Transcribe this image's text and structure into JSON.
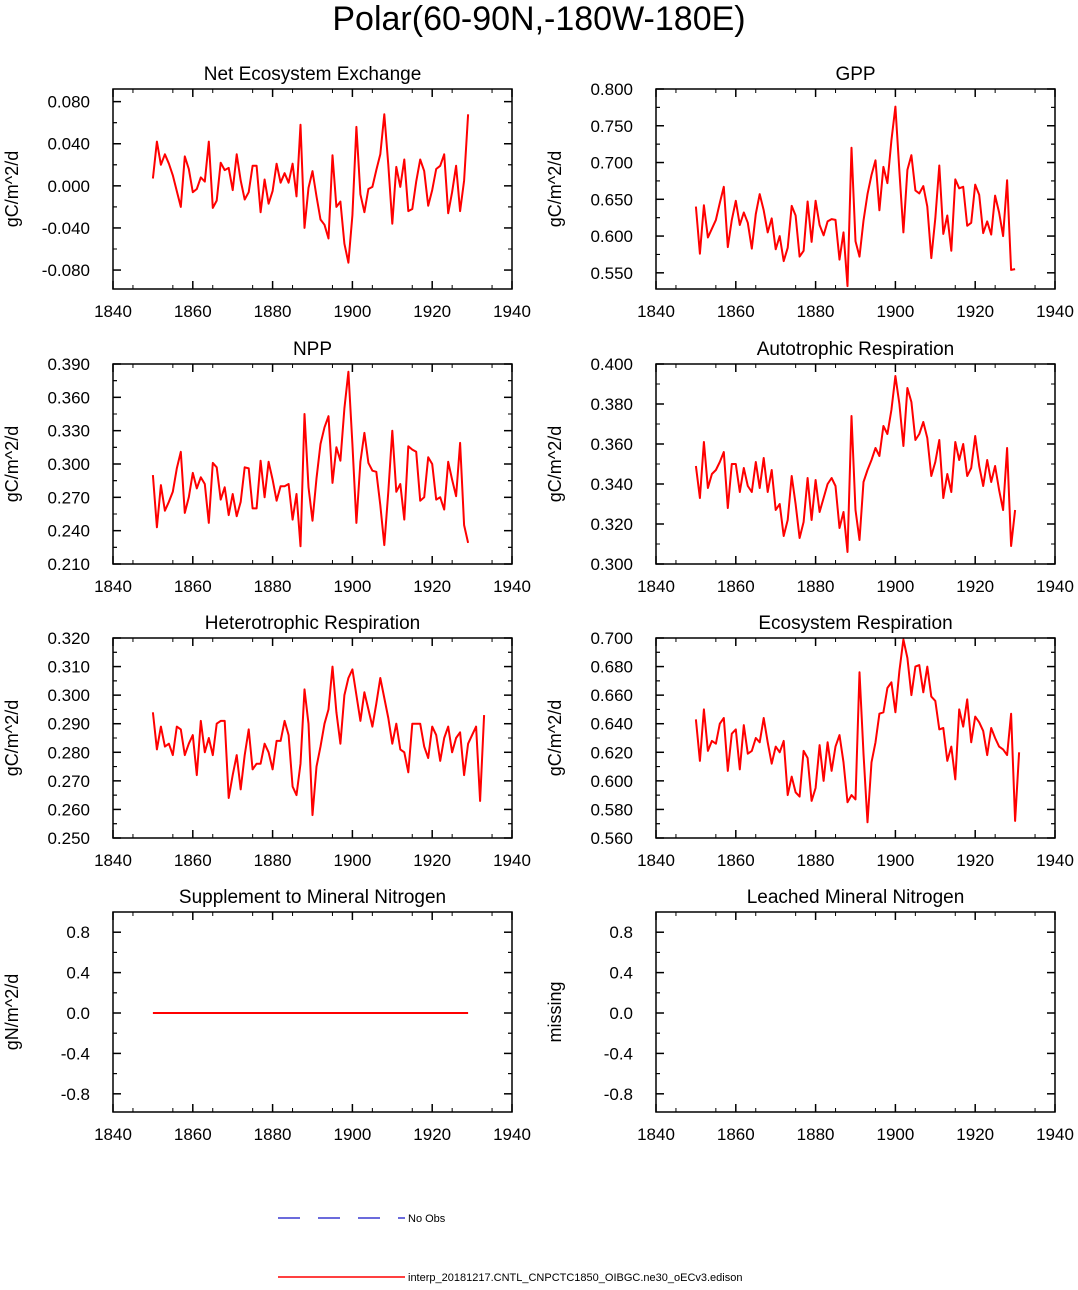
{
  "figure_title": "Polar(60-90N,-180W-180E)",
  "legend": [
    {
      "label": "No Obs",
      "color": "#3a3ad0",
      "dash": "dashed"
    },
    {
      "label": "interp_20181217.CNTL_CNPCTC1850_OIBGC.ne30_oECv3.edison",
      "color": "#ff0000",
      "dash": "solid"
    }
  ],
  "chart_data": [
    {
      "type": "line",
      "title": "Net Ecosystem Exchange",
      "ylabel": "gC/m^2/d",
      "xlabel": "",
      "xlim": [
        1840,
        1940
      ],
      "ylim": [
        -0.098,
        0.092
      ],
      "xticks": [
        1840,
        1860,
        1880,
        1900,
        1920,
        1940
      ],
      "xtick_labels": [
        "1840",
        "1860",
        "1880",
        "1900",
        "1920",
        "1940"
      ],
      "yticks": [
        -0.08,
        -0.04,
        0.0,
        0.04,
        0.08
      ],
      "ytick_labels": [
        "-0.080",
        "-0.040",
        "0.000",
        "0.040",
        "0.080"
      ],
      "x_start": 1850,
      "series": [
        {
          "name": "interp_20181217.CNTL_CNPCTC1850_OIBGC.ne30_oECv3.edison",
          "color": "#ff0000",
          "values": [
            0.007,
            0.042,
            0.02,
            0.03,
            0.021,
            0.01,
            -0.005,
            -0.02,
            0.028,
            0.016,
            -0.006,
            -0.003,
            0.008,
            0.004,
            0.042,
            -0.021,
            -0.014,
            0.022,
            0.015,
            0.017,
            -0.004,
            0.03,
            0.005,
            -0.013,
            -0.006,
            0.019,
            0.019,
            -0.025,
            0.006,
            -0.017,
            -0.005,
            0.021,
            0.003,
            0.012,
            0.003,
            0.021,
            -0.01,
            0.058,
            -0.04,
            -0.002,
            0.014,
            -0.01,
            -0.032,
            -0.037,
            -0.05,
            0.029,
            -0.02,
            -0.015,
            -0.055,
            -0.073,
            -0.028,
            0.056,
            -0.008,
            -0.025,
            -0.003,
            -0.001,
            0.015,
            0.03,
            0.068,
            0.02,
            -0.036,
            0.018,
            -0.001,
            0.025,
            -0.024,
            -0.022,
            0.004,
            0.025,
            0.014,
            -0.019,
            -0.004,
            0.016,
            0.019,
            0.03,
            -0.026,
            -0.006,
            0.019,
            -0.024,
            0.005,
            0.068
          ]
        }
      ]
    },
    {
      "type": "line",
      "title": "GPP",
      "ylabel": "gC/m^2/d",
      "xlabel": "",
      "xlim": [
        1840,
        1940
      ],
      "ylim": [
        0.528,
        0.8
      ],
      "xticks": [
        1840,
        1860,
        1880,
        1900,
        1920,
        1940
      ],
      "xtick_labels": [
        "1840",
        "1860",
        "1880",
        "1900",
        "1920",
        "1940"
      ],
      "yticks": [
        0.55,
        0.6,
        0.65,
        0.7,
        0.75,
        0.8
      ],
      "ytick_labels": [
        "0.550",
        "0.600",
        "0.650",
        "0.700",
        "0.750",
        "0.800"
      ],
      "x_start": 1850,
      "series": [
        {
          "name": "interp_20181217.CNTL_CNPCTC1850_OIBGC.ne30_oECv3.edison",
          "color": "#ff0000",
          "values": [
            0.64,
            0.576,
            0.642,
            0.598,
            0.61,
            0.622,
            0.645,
            0.667,
            0.585,
            0.622,
            0.648,
            0.615,
            0.632,
            0.618,
            0.583,
            0.63,
            0.657,
            0.635,
            0.605,
            0.624,
            0.582,
            0.6,
            0.566,
            0.584,
            0.641,
            0.628,
            0.572,
            0.58,
            0.647,
            0.592,
            0.648,
            0.615,
            0.601,
            0.62,
            0.623,
            0.622,
            0.568,
            0.605,
            0.532,
            0.72,
            0.593,
            0.572,
            0.621,
            0.657,
            0.683,
            0.703,
            0.635,
            0.694,
            0.672,
            0.73,
            0.776,
            0.688,
            0.605,
            0.69,
            0.71,
            0.662,
            0.658,
            0.668,
            0.64,
            0.57,
            0.624,
            0.696,
            0.603,
            0.628,
            0.58,
            0.677,
            0.665,
            0.667,
            0.614,
            0.618,
            0.67,
            0.656,
            0.604,
            0.62,
            0.602,
            0.655,
            0.632,
            0.6,
            0.676,
            0.554,
            0.555
          ]
        }
      ]
    },
    {
      "type": "line",
      "title": "NPP",
      "ylabel": "gC/m^2/d",
      "xlabel": "",
      "xlim": [
        1840,
        1940
      ],
      "ylim": [
        0.21,
        0.39
      ],
      "xticks": [
        1840,
        1860,
        1880,
        1900,
        1920,
        1940
      ],
      "xtick_labels": [
        "1840",
        "1860",
        "1880",
        "1900",
        "1920",
        "1940"
      ],
      "yticks": [
        0.21,
        0.24,
        0.27,
        0.3,
        0.33,
        0.36,
        0.39
      ],
      "ytick_labels": [
        "0.210",
        "0.240",
        "0.270",
        "0.300",
        "0.330",
        "0.360",
        "0.390"
      ],
      "x_start": 1850,
      "series": [
        {
          "name": "interp_20181217.CNTL_CNPCTC1850_OIBGC.ne30_oECv3.edison",
          "color": "#ff0000",
          "values": [
            0.29,
            0.243,
            0.281,
            0.258,
            0.266,
            0.275,
            0.296,
            0.311,
            0.256,
            0.27,
            0.292,
            0.278,
            0.288,
            0.282,
            0.247,
            0.301,
            0.297,
            0.268,
            0.279,
            0.254,
            0.273,
            0.253,
            0.266,
            0.297,
            0.296,
            0.26,
            0.26,
            0.303,
            0.27,
            0.302,
            0.286,
            0.267,
            0.28,
            0.28,
            0.282,
            0.25,
            0.273,
            0.226,
            0.345,
            0.279,
            0.249,
            0.287,
            0.318,
            0.333,
            0.343,
            0.283,
            0.315,
            0.303,
            0.35,
            0.383,
            0.318,
            0.247,
            0.302,
            0.328,
            0.301,
            0.294,
            0.293,
            0.263,
            0.227,
            0.275,
            0.33,
            0.275,
            0.282,
            0.25,
            0.316,
            0.313,
            0.311,
            0.267,
            0.27,
            0.306,
            0.3,
            0.268,
            0.27,
            0.259,
            0.302,
            0.286,
            0.271,
            0.319,
            0.245,
            0.229
          ]
        }
      ]
    },
    {
      "type": "line",
      "title": "Autotrophic Respiration",
      "ylabel": "gC/m^2/d",
      "xlabel": "",
      "xlim": [
        1840,
        1940
      ],
      "ylim": [
        0.3,
        0.4
      ],
      "xticks": [
        1840,
        1860,
        1880,
        1900,
        1920,
        1940
      ],
      "xtick_labels": [
        "1840",
        "1860",
        "1880",
        "1900",
        "1920",
        "1940"
      ],
      "yticks": [
        0.3,
        0.32,
        0.34,
        0.36,
        0.38,
        0.4
      ],
      "ytick_labels": [
        "0.300",
        "0.320",
        "0.340",
        "0.360",
        "0.380",
        "0.400"
      ],
      "x_start": 1850,
      "series": [
        {
          "name": "interp_20181217.CNTL_CNPCTC1850_OIBGC.ne30_oECv3.edison",
          "color": "#ff0000",
          "values": [
            0.349,
            0.333,
            0.361,
            0.338,
            0.345,
            0.347,
            0.351,
            0.356,
            0.328,
            0.35,
            0.35,
            0.336,
            0.348,
            0.339,
            0.336,
            0.351,
            0.338,
            0.353,
            0.336,
            0.347,
            0.327,
            0.33,
            0.314,
            0.322,
            0.344,
            0.33,
            0.313,
            0.321,
            0.343,
            0.322,
            0.342,
            0.326,
            0.333,
            0.34,
            0.343,
            0.339,
            0.318,
            0.326,
            0.306,
            0.374,
            0.327,
            0.312,
            0.341,
            0.347,
            0.352,
            0.358,
            0.354,
            0.369,
            0.365,
            0.377,
            0.394,
            0.38,
            0.359,
            0.388,
            0.381,
            0.362,
            0.365,
            0.371,
            0.363,
            0.344,
            0.351,
            0.362,
            0.333,
            0.345,
            0.336,
            0.361,
            0.352,
            0.36,
            0.344,
            0.348,
            0.364,
            0.349,
            0.339,
            0.352,
            0.341,
            0.349,
            0.337,
            0.327,
            0.358,
            0.309,
            0.327
          ]
        }
      ]
    },
    {
      "type": "line",
      "title": "Heterotrophic Respiration",
      "ylabel": "gC/m^2/d",
      "xlabel": "",
      "xlim": [
        1840,
        1940
      ],
      "ylim": [
        0.25,
        0.32
      ],
      "xticks": [
        1840,
        1860,
        1880,
        1900,
        1920,
        1940
      ],
      "xtick_labels": [
        "1840",
        "1860",
        "1880",
        "1900",
        "1920",
        "1940"
      ],
      "yticks": [
        0.25,
        0.26,
        0.27,
        0.28,
        0.29,
        0.3,
        0.31,
        0.32
      ],
      "ytick_labels": [
        "0.250",
        "0.260",
        "0.270",
        "0.280",
        "0.290",
        "0.300",
        "0.310",
        "0.320"
      ],
      "x_start": 1850,
      "series": [
        {
          "name": "interp_20181217.CNTL_CNPCTC1850_OIBGC.ne30_oECv3.edison",
          "color": "#ff0000",
          "values": [
            0.294,
            0.281,
            0.289,
            0.282,
            0.283,
            0.279,
            0.289,
            0.288,
            0.279,
            0.283,
            0.286,
            0.272,
            0.291,
            0.28,
            0.285,
            0.279,
            0.29,
            0.291,
            0.291,
            0.264,
            0.272,
            0.279,
            0.267,
            0.279,
            0.288,
            0.274,
            0.276,
            0.276,
            0.283,
            0.28,
            0.274,
            0.284,
            0.284,
            0.291,
            0.286,
            0.268,
            0.265,
            0.276,
            0.302,
            0.29,
            0.258,
            0.275,
            0.282,
            0.29,
            0.295,
            0.31,
            0.294,
            0.283,
            0.3,
            0.306,
            0.309,
            0.3,
            0.291,
            0.301,
            0.295,
            0.289,
            0.297,
            0.306,
            0.299,
            0.292,
            0.283,
            0.29,
            0.281,
            0.28,
            0.273,
            0.29,
            0.29,
            0.29,
            0.282,
            0.278,
            0.289,
            0.286,
            0.277,
            0.285,
            0.289,
            0.28,
            0.285,
            0.287,
            0.272,
            0.283,
            0.286,
            0.289,
            0.263,
            0.293
          ]
        }
      ]
    },
    {
      "type": "line",
      "title": "Ecosystem Respiration",
      "ylabel": "gC/m^2/d",
      "xlabel": "",
      "xlim": [
        1840,
        1940
      ],
      "ylim": [
        0.56,
        0.7
      ],
      "xticks": [
        1840,
        1860,
        1880,
        1900,
        1920,
        1940
      ],
      "xtick_labels": [
        "1840",
        "1860",
        "1880",
        "1900",
        "1920",
        "1940"
      ],
      "yticks": [
        0.56,
        0.58,
        0.6,
        0.62,
        0.64,
        0.66,
        0.68,
        0.7
      ],
      "ytick_labels": [
        "0.560",
        "0.580",
        "0.600",
        "0.620",
        "0.640",
        "0.660",
        "0.680",
        "0.700"
      ],
      "x_start": 1850,
      "series": [
        {
          "name": "interp_20181217.CNTL_CNPCTC1850_OIBGC.ne30_oECv3.edison",
          "color": "#ff0000",
          "values": [
            0.643,
            0.614,
            0.65,
            0.621,
            0.628,
            0.626,
            0.64,
            0.644,
            0.607,
            0.633,
            0.636,
            0.608,
            0.639,
            0.619,
            0.621,
            0.63,
            0.627,
            0.644,
            0.627,
            0.612,
            0.624,
            0.62,
            0.628,
            0.59,
            0.603,
            0.592,
            0.589,
            0.621,
            0.616,
            0.586,
            0.595,
            0.625,
            0.6,
            0.627,
            0.607,
            0.624,
            0.632,
            0.613,
            0.585,
            0.59,
            0.587,
            0.676,
            0.619,
            0.571,
            0.613,
            0.627,
            0.647,
            0.648,
            0.665,
            0.669,
            0.648,
            0.677,
            0.699,
            0.686,
            0.66,
            0.68,
            0.681,
            0.662,
            0.68,
            0.659,
            0.656,
            0.636,
            0.637,
            0.614,
            0.624,
            0.601,
            0.65,
            0.638,
            0.657,
            0.627,
            0.645,
            0.641,
            0.635,
            0.618,
            0.637,
            0.63,
            0.624,
            0.622,
            0.618,
            0.647,
            0.572,
            0.62
          ]
        }
      ]
    },
    {
      "type": "line",
      "title": "Supplement to Mineral Nitrogen",
      "ylabel": "gN/m^2/d",
      "xlabel": "",
      "xlim": [
        1840,
        1940
      ],
      "ylim": [
        -0.98,
        1.0
      ],
      "xticks": [
        1840,
        1860,
        1880,
        1900,
        1920,
        1940
      ],
      "xtick_labels": [
        "1840",
        "1860",
        "1880",
        "1900",
        "1920",
        "1940"
      ],
      "yticks": [
        -0.8,
        -0.4,
        0.0,
        0.4,
        0.8
      ],
      "ytick_labels": [
        "-0.8",
        "-0.4",
        "0.0",
        "0.4",
        "0.8"
      ],
      "x_start": 1850,
      "series": [
        {
          "name": "interp_20181217.CNTL_CNPCTC1850_OIBGC.ne30_oECv3.edison",
          "color": "#ff0000",
          "values": [
            0,
            0,
            0,
            0,
            0,
            0,
            0,
            0,
            0,
            0,
            0,
            0,
            0,
            0,
            0,
            0,
            0,
            0,
            0,
            0,
            0,
            0,
            0,
            0,
            0,
            0,
            0,
            0,
            0,
            0,
            0,
            0,
            0,
            0,
            0,
            0,
            0,
            0,
            0,
            0,
            0,
            0,
            0,
            0,
            0,
            0,
            0,
            0,
            0,
            0,
            0,
            0,
            0,
            0,
            0,
            0,
            0,
            0,
            0,
            0,
            0,
            0,
            0,
            0,
            0,
            0,
            0,
            0,
            0,
            0,
            0,
            0,
            0,
            0,
            0,
            0,
            0,
            0,
            0,
            0
          ]
        }
      ]
    },
    {
      "type": "line",
      "title": "Leached Mineral Nitrogen",
      "ylabel": "missing",
      "xlabel": "",
      "xlim": [
        1840,
        1940
      ],
      "ylim": [
        -0.98,
        1.0
      ],
      "xticks": [
        1840,
        1860,
        1880,
        1900,
        1920,
        1940
      ],
      "xtick_labels": [
        "1840",
        "1860",
        "1880",
        "1900",
        "1920",
        "1940"
      ],
      "yticks": [
        -0.8,
        -0.4,
        0.0,
        0.4,
        0.8
      ],
      "ytick_labels": [
        "-0.8",
        "-0.4",
        "0.0",
        "0.4",
        "0.8"
      ],
      "x_start": 1850,
      "series": []
    }
  ]
}
